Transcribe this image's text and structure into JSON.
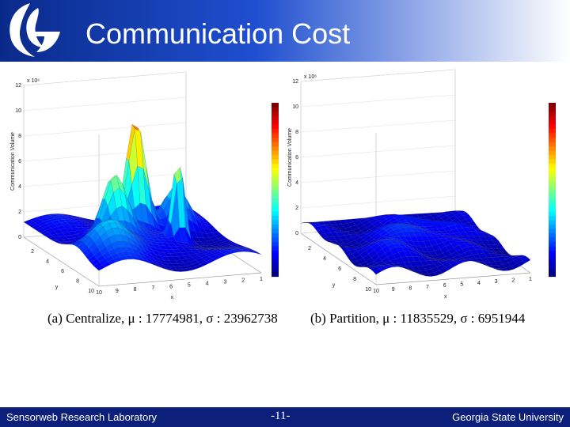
{
  "header": {
    "title": "Communication Cost"
  },
  "figures": [
    {
      "caption": "(a)  Centralize, μ : 17774981, σ : 23962738",
      "zlabel": "Communication Volume",
      "zexp": "x 10⁶",
      "zticks": [
        "0",
        "2",
        "4",
        "6",
        "8",
        "10",
        "12"
      ],
      "xticks": [
        "10",
        "9",
        "8",
        "7",
        "6",
        "5",
        "4",
        "3",
        "2",
        "1"
      ],
      "yticks": [
        "2",
        "4",
        "6",
        "8",
        "10"
      ],
      "xlabel": "x",
      "ylabel": "y"
    },
    {
      "caption": "(b)  Partition, μ : 11835529, σ : 6951944",
      "zlabel": "Communication Volume",
      "zexp": "x 10⁶",
      "zticks": [
        "0",
        "2",
        "4",
        "6",
        "8",
        "10",
        "12"
      ],
      "xticks": [
        "10",
        "9",
        "8",
        "7",
        "6",
        "5",
        "4",
        "3",
        "2",
        "1"
      ],
      "yticks": [
        "2",
        "4",
        "6",
        "8",
        "10"
      ],
      "xlabel": "x",
      "ylabel": "y"
    }
  ],
  "footer": {
    "left": "Sensorweb Research Laboratory",
    "page": "-11-",
    "right": "Georgia State University"
  }
}
